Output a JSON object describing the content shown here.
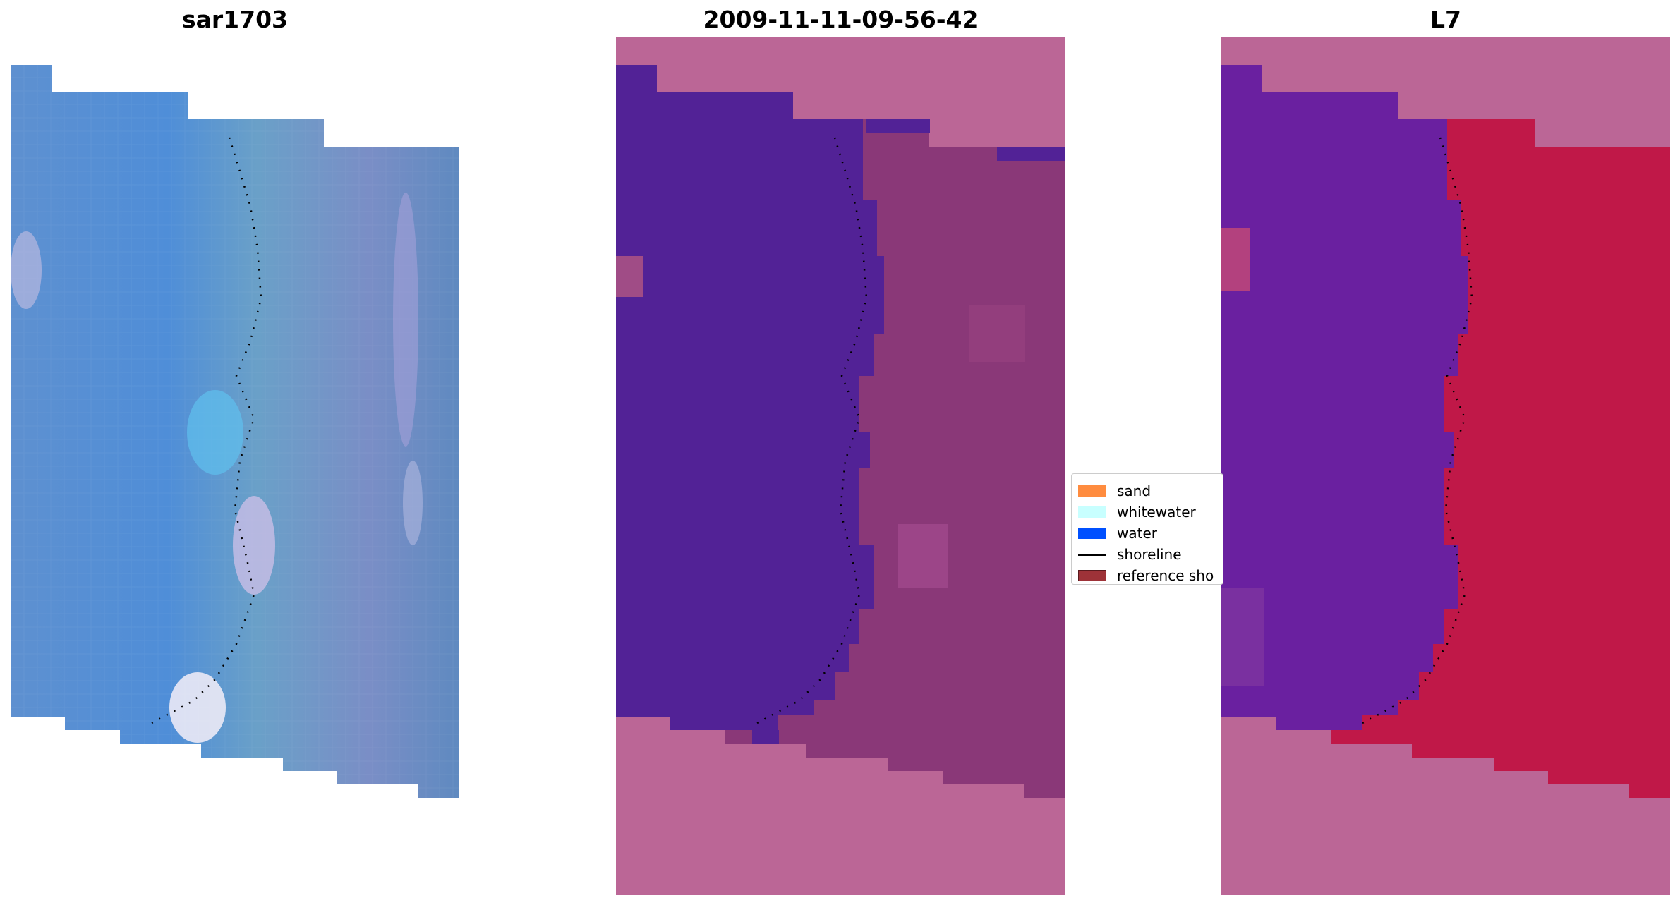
{
  "panels": [
    {
      "title": "sar1703",
      "icon": "satellite-rgb-image"
    },
    {
      "title": "2009-11-11-09-56-42",
      "icon": "classified-image"
    },
    {
      "title": "L7",
      "icon": "mndwi-image"
    }
  ],
  "legend": {
    "items": [
      {
        "label": "sand",
        "color": "#ff8c3f",
        "kind": "patch"
      },
      {
        "label": "whitewater",
        "color": "#c8ffff",
        "kind": "patch"
      },
      {
        "label": "water",
        "color": "#0050ff",
        "kind": "patch"
      },
      {
        "label": "shoreline",
        "color": "#000000",
        "kind": "line"
      },
      {
        "label": "reference sho",
        "color": "#9e3238",
        "kind": "patch"
      }
    ]
  },
  "colors": {
    "rgb_blue": "#4a7fc2",
    "water_class": "#522296",
    "land_class": "#8a3878",
    "nodata_mask": "#bb6696",
    "mndwi_water": "#6a20a0",
    "mndwi_land": "#c01848"
  }
}
